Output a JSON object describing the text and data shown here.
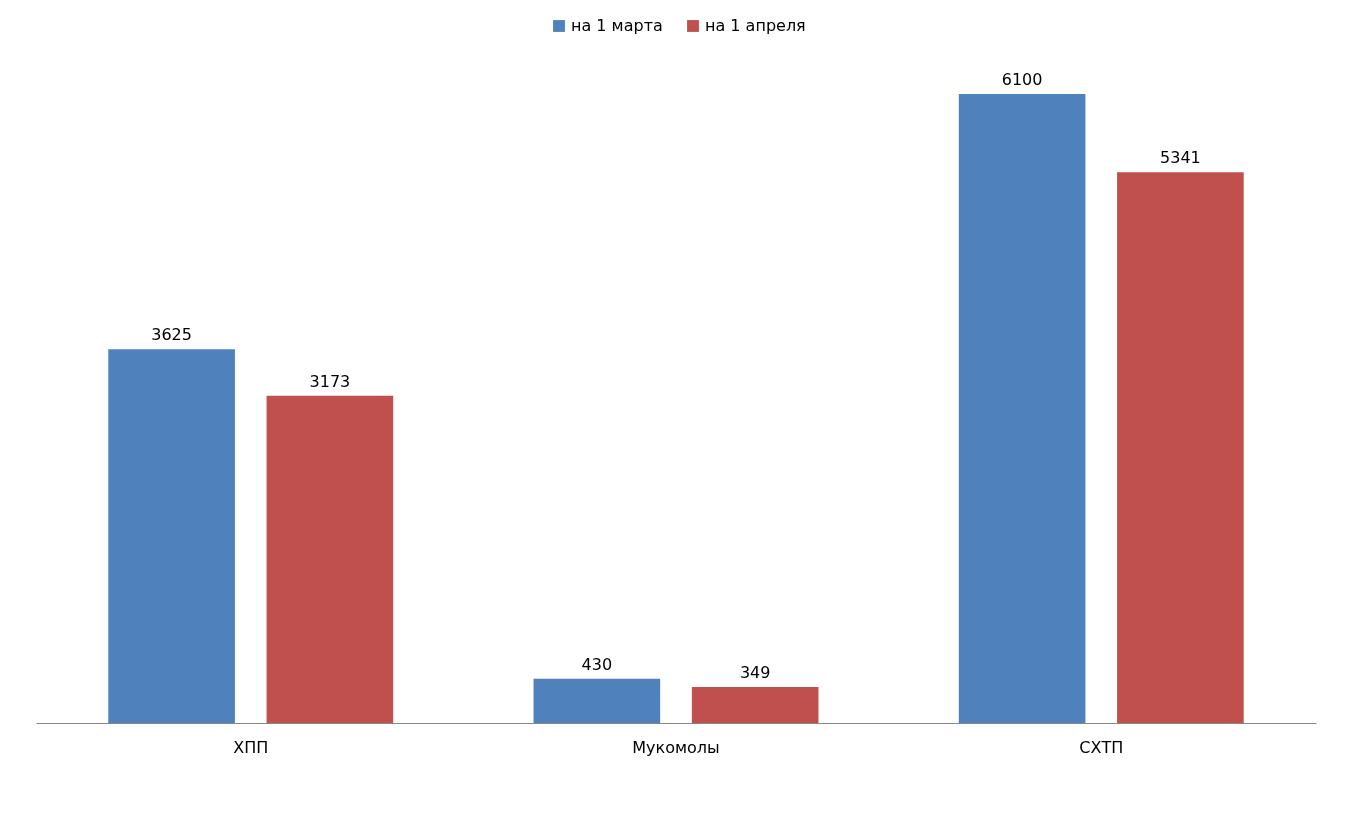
{
  "chart_data": {
    "type": "bar",
    "categories": [
      "ХПП",
      "Мукомолы",
      "СХТП"
    ],
    "series": [
      {
        "name": "на 1 марта",
        "color": "#4f81bd",
        "values": [
          3625,
          430,
          6100
        ]
      },
      {
        "name": "на 1 апреля",
        "color": "#c0504d",
        "values": [
          3173,
          349,
          5341
        ]
      }
    ],
    "data_labels": true,
    "legend": "top",
    "grid": false,
    "tick_labels": "x"
  }
}
